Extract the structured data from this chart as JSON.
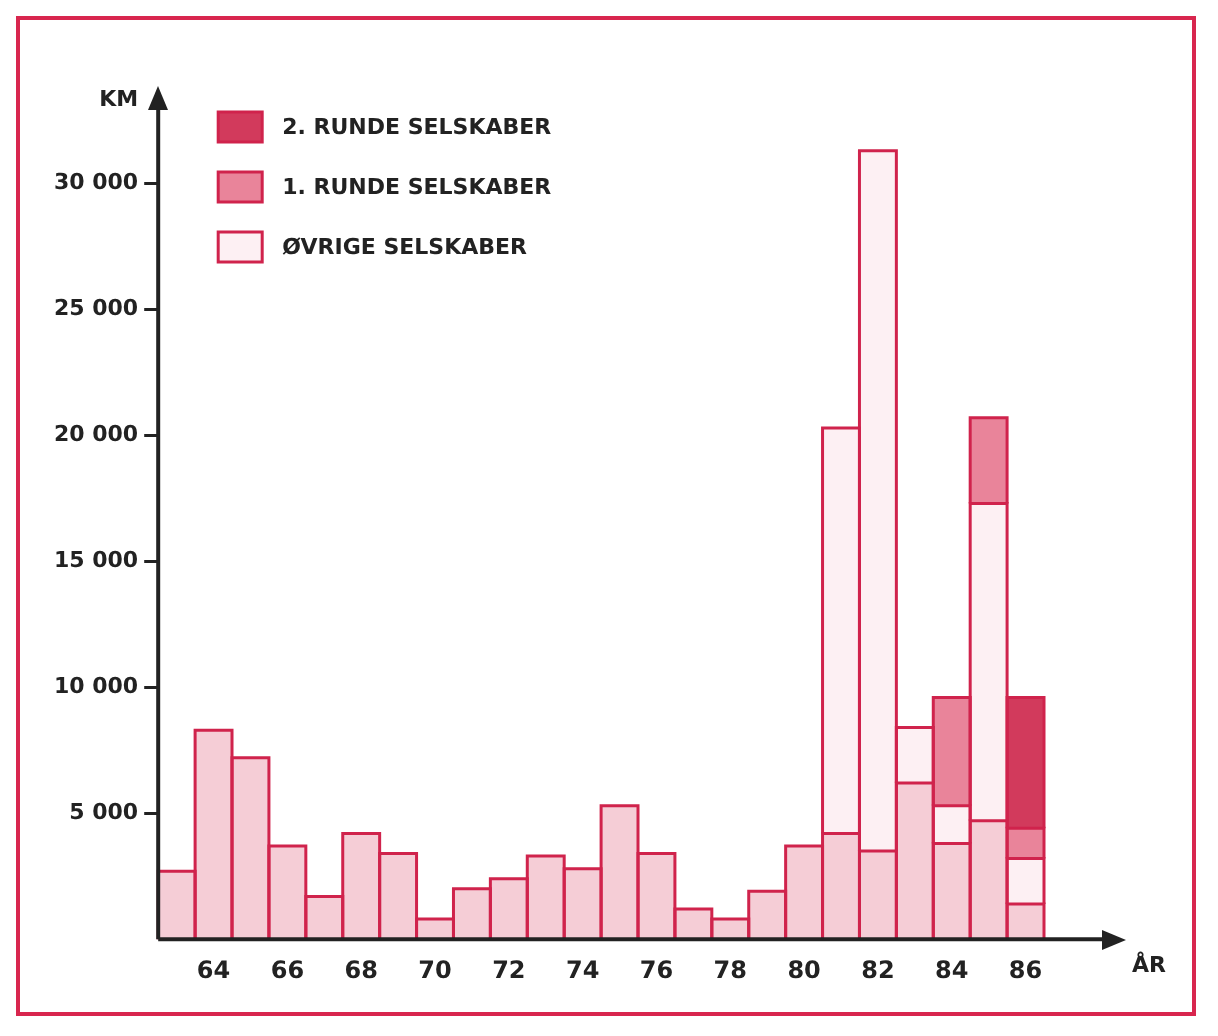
{
  "chart_data": {
    "type": "bar",
    "stacked": true,
    "xlabel": "ÅR",
    "ylabel": "KM",
    "categories": [
      null,
      "64",
      null,
      "66",
      null,
      "68",
      null,
      "70",
      null,
      "72",
      null,
      "74",
      null,
      "76",
      null,
      "78",
      null,
      "80",
      null,
      "82",
      null,
      "84",
      null,
      "86"
    ],
    "series": [
      {
        "color": "#f5cdd6",
        "values": [
          2700,
          8300,
          7200,
          3700,
          1700,
          4200,
          3400,
          800,
          2000,
          2400,
          3300,
          2800,
          5300,
          3400,
          1200,
          800,
          1900,
          3700,
          4200,
          3500,
          6200,
          3800,
          4700,
          1400
        ]
      },
      {
        "name": "ØVRIGE SELSKABER",
        "color": "#fdf0f3",
        "values": [
          null,
          null,
          null,
          null,
          null,
          null,
          null,
          null,
          null,
          null,
          null,
          null,
          null,
          null,
          null,
          null,
          null,
          null,
          16100,
          27800,
          2200,
          1500,
          12600,
          1800
        ]
      },
      {
        "name": "1. RUNDE SELSKABER",
        "color": "#e9849a",
        "values": [
          null,
          null,
          null,
          null,
          null,
          null,
          null,
          null,
          null,
          null,
          null,
          null,
          null,
          null,
          null,
          null,
          null,
          null,
          null,
          null,
          null,
          4300,
          3400,
          1200
        ]
      },
      {
        "name": "2. RUNDE SELSKABER",
        "color": "#d23a5c",
        "values": [
          null,
          null,
          null,
          null,
          null,
          null,
          null,
          null,
          null,
          null,
          null,
          null,
          null,
          null,
          null,
          null,
          null,
          null,
          null,
          null,
          null,
          null,
          null,
          5200
        ]
      }
    ],
    "ylim": [
      0,
      33000
    ],
    "yticks": [
      {
        "value": 5000,
        "label": "5 000"
      },
      {
        "value": 10000,
        "label": "10 000"
      },
      {
        "value": 15000,
        "label": "15 000"
      },
      {
        "value": 20000,
        "label": "20 000"
      },
      {
        "value": 25000,
        "label": "25 000"
      },
      {
        "value": 30000,
        "label": "30 000"
      }
    ],
    "grid": false,
    "legend": "top left"
  }
}
